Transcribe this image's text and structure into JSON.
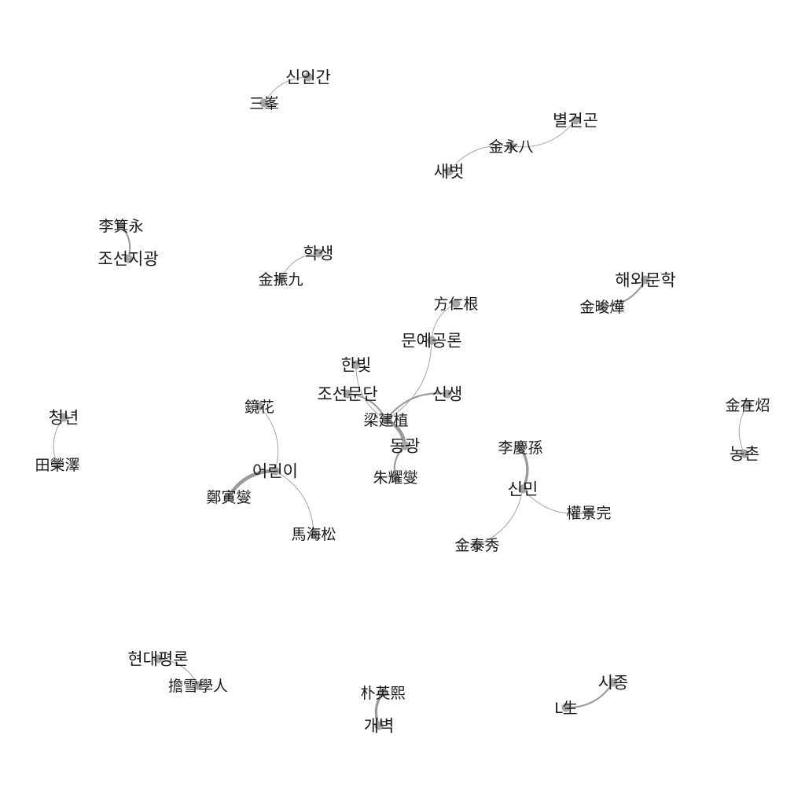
{
  "diagram": {
    "type": "network-graph",
    "colors": {
      "edge": "#9a9a9a",
      "node": "#a6a6a6",
      "label": "#1a1a1a",
      "background": "#ffffff"
    },
    "nodes": [
      {
        "id": "sininggan",
        "label": "신인간"
      },
      {
        "id": "sambong",
        "label": "三峯"
      },
      {
        "id": "byeolgeongon",
        "label": "별건곤"
      },
      {
        "id": "kimyoungpal",
        "label": "金永八"
      },
      {
        "id": "saebeot",
        "label": "새벗"
      },
      {
        "id": "leegiyoung",
        "label": "李箕永"
      },
      {
        "id": "joseonjigwang",
        "label": "조선지광"
      },
      {
        "id": "haksaeng",
        "label": "학생"
      },
      {
        "id": "kimjingu",
        "label": "金振九"
      },
      {
        "id": "haeoemunhak",
        "label": "해외문학"
      },
      {
        "id": "kimjunyeop",
        "label": "金晙燁"
      },
      {
        "id": "bangingeun",
        "label": "方仁根"
      },
      {
        "id": "munyegongron",
        "label": "문예공론"
      },
      {
        "id": "hanbit",
        "label": "한빛"
      },
      {
        "id": "joseonmundan",
        "label": "조선문단"
      },
      {
        "id": "sinsaeng",
        "label": "신생"
      },
      {
        "id": "yanggeonsik",
        "label": "梁建植"
      },
      {
        "id": "donggwang",
        "label": "동광"
      },
      {
        "id": "juyoseop",
        "label": "朱耀燮"
      },
      {
        "id": "kyeonghwa",
        "label": "鏡花"
      },
      {
        "id": "eorini",
        "label": "어린이"
      },
      {
        "id": "jeonginseop",
        "label": "鄭寅燮"
      },
      {
        "id": "mahaesong",
        "label": "馬海松"
      },
      {
        "id": "cheongnyeon",
        "label": "청년"
      },
      {
        "id": "jeonyoungtaek",
        "label": "田榮澤"
      },
      {
        "id": "leegyeongson",
        "label": "李慶孫"
      },
      {
        "id": "sinmin",
        "label": "신민"
      },
      {
        "id": "kwongyeongwan",
        "label": "權景完"
      },
      {
        "id": "kimtaesu",
        "label": "金泰秀"
      },
      {
        "id": "kimjaeso",
        "label": "金在炤"
      },
      {
        "id": "nongchon",
        "label": "농촌"
      },
      {
        "id": "hyeondaepyeongron",
        "label": "현대평론"
      },
      {
        "id": "damseolhakin",
        "label": "擔雪學人"
      },
      {
        "id": "parkyounghui",
        "label": "朴英熙"
      },
      {
        "id": "gaebyeok",
        "label": "개벽"
      },
      {
        "id": "sijong",
        "label": "시종"
      },
      {
        "id": "lsaeng",
        "label": "L生"
      }
    ],
    "edges": [
      {
        "source": "sininggan",
        "target": "sambong",
        "weight": 1
      },
      {
        "source": "byeolgeongon",
        "target": "kimyoungpal",
        "weight": 1
      },
      {
        "source": "kimyoungpal",
        "target": "saebeot",
        "weight": 1
      },
      {
        "source": "leegiyoung",
        "target": "joseonjigwang",
        "weight": 2
      },
      {
        "source": "haksaeng",
        "target": "kimjingu",
        "weight": 1
      },
      {
        "source": "haeoemunhak",
        "target": "kimjunyeop",
        "weight": 2
      },
      {
        "source": "bangingeun",
        "target": "munyegongron",
        "weight": 1
      },
      {
        "source": "munyegongron",
        "target": "yanggeonsik",
        "weight": 1
      },
      {
        "source": "hanbit",
        "target": "yanggeonsik",
        "weight": 1
      },
      {
        "source": "joseonmundan",
        "target": "yanggeonsik",
        "weight": 2
      },
      {
        "source": "sinsaeng",
        "target": "yanggeonsik",
        "weight": 2
      },
      {
        "source": "yanggeonsik",
        "target": "donggwang",
        "weight": 4
      },
      {
        "source": "donggwang",
        "target": "juyoseop",
        "weight": 2
      },
      {
        "source": "kyeonghwa",
        "target": "eorini",
        "weight": 1
      },
      {
        "source": "eorini",
        "target": "jeonginseop",
        "weight": 4
      },
      {
        "source": "eorini",
        "target": "mahaesong",
        "weight": 1
      },
      {
        "source": "cheongnyeon",
        "target": "jeonyoungtaek",
        "weight": 1
      },
      {
        "source": "leegyeongson",
        "target": "sinmin",
        "weight": 3
      },
      {
        "source": "sinmin",
        "target": "kwongyeongwan",
        "weight": 1
      },
      {
        "source": "sinmin",
        "target": "kimtaesu",
        "weight": 1
      },
      {
        "source": "kimjaeso",
        "target": "nongchon",
        "weight": 1
      },
      {
        "source": "hyeondaepyeongron",
        "target": "damseolhakin",
        "weight": 1
      },
      {
        "source": "parkyounghui",
        "target": "gaebyeok",
        "weight": 3
      },
      {
        "source": "sijong",
        "target": "lsaeng",
        "weight": 2
      }
    ]
  }
}
